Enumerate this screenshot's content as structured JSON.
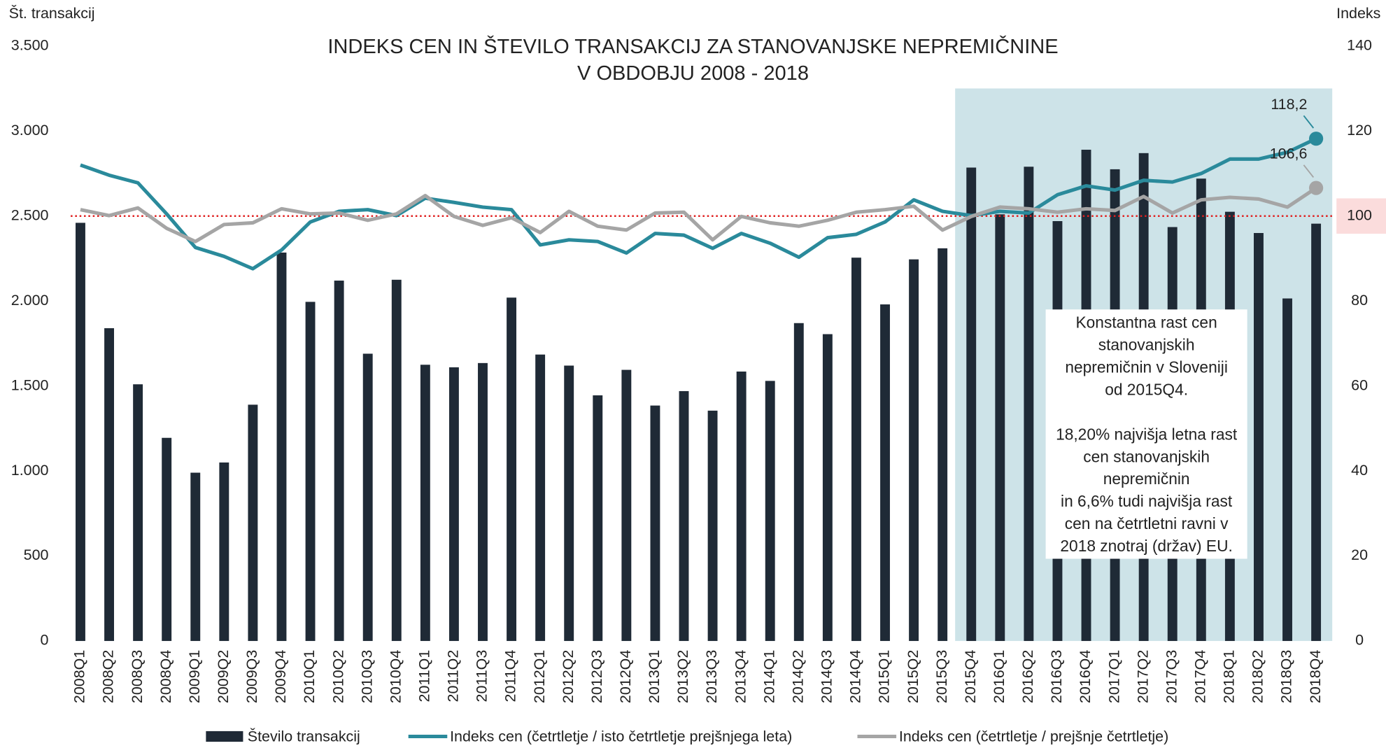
{
  "chart_data": {
    "type": "bar",
    "title": [
      "INDEKS CEN IN ŠTEVILO TRANSAKCIJ ZA STANOVANJSKE NEPREMIČNINE",
      "V OBDOBJU 2008 - 2018"
    ],
    "y_label": "Št. transakcij",
    "y2_label": "Indeks",
    "categories": [
      "2008Q1",
      "2008Q2",
      "2008Q3",
      "2008Q4",
      "2009Q1",
      "2009Q2",
      "2009Q3",
      "2009Q4",
      "2010Q1",
      "2010Q2",
      "2010Q3",
      "2010Q4",
      "2011Q1",
      "2011Q2",
      "2011Q3",
      "2011Q4",
      "2012Q1",
      "2012Q2",
      "2012Q3",
      "2012Q4",
      "2013Q1",
      "2013Q2",
      "2013Q3",
      "2013Q4",
      "2014Q1",
      "2014Q2",
      "2014Q3",
      "2014Q4",
      "2015Q1",
      "2015Q2",
      "2015Q3",
      "2015Q4",
      "2016Q1",
      "2016Q2",
      "2016Q3",
      "2016Q4",
      "2017Q1",
      "2017Q2",
      "2017Q3",
      "2017Q4",
      "2018Q1",
      "2018Q2",
      "2018Q3",
      "2018Q4"
    ],
    "series": [
      {
        "name": "Število transakcij",
        "type": "bar",
        "axis": "y",
        "color": "#1f2a36",
        "values": [
          2460,
          1840,
          1510,
          1195,
          990,
          1050,
          1390,
          2285,
          1995,
          2120,
          1690,
          2125,
          1625,
          1610,
          1635,
          2020,
          1685,
          1620,
          1445,
          1595,
          1385,
          1470,
          1355,
          1585,
          1530,
          1870,
          1805,
          2255,
          1980,
          2245,
          2310,
          2785,
          2510,
          2790,
          2470,
          2890,
          2775,
          2870,
          2435,
          2720,
          2525,
          2400,
          2015,
          2455
        ]
      },
      {
        "name": "Indeks cen (četrtletje / isto četrtletje prejšnjega leta)",
        "type": "line",
        "axis": "y2",
        "color": "#2a8a9b",
        "values": [
          112,
          109.6,
          107.8,
          100.5,
          92.6,
          90.5,
          87.6,
          92,
          98.6,
          101.1,
          101.5,
          100.1,
          104.2,
          103.2,
          102.1,
          101.5,
          93.2,
          94.4,
          94,
          91.3,
          95.9,
          95.5,
          92.4,
          95.9,
          93.6,
          90.3,
          94.9,
          95.7,
          98.6,
          103.8,
          101.1,
          100.1,
          101.1,
          100.7,
          105,
          107.1,
          106.1,
          108.4,
          108,
          110,
          113.4,
          113.4,
          115,
          118.2
        ],
        "value_labels": [
          null,
          null,
          null,
          null,
          null,
          null,
          null,
          null,
          null,
          null,
          null,
          null,
          null,
          null,
          null,
          null,
          null,
          null,
          null,
          null,
          null,
          null,
          null,
          null,
          null,
          null,
          null,
          null,
          null,
          null,
          null,
          null,
          null,
          null,
          null,
          null,
          null,
          null,
          null,
          null,
          null,
          null,
          null,
          "118,2"
        ]
      },
      {
        "name": "Indeks cen (četrtletje / prejšnje četrtletje)",
        "type": "line",
        "axis": "y2",
        "color": "#a5a5a5",
        "values": [
          101.5,
          100.1,
          101.9,
          97.1,
          94,
          98,
          98.4,
          101.7,
          100.5,
          100.7,
          99,
          100.5,
          104.8,
          99.9,
          97.8,
          99.6,
          96.1,
          101.1,
          97.6,
          96.7,
          100.7,
          100.9,
          94.4,
          99.9,
          98.4,
          97.6,
          99,
          100.9,
          101.5,
          102.3,
          96.7,
          99.9,
          102.1,
          101.7,
          100.9,
          101.7,
          101.3,
          104.6,
          100.7,
          103.8,
          104.4,
          104,
          102.1,
          106.6
        ],
        "value_labels": [
          null,
          null,
          null,
          null,
          null,
          null,
          null,
          null,
          null,
          null,
          null,
          null,
          null,
          null,
          null,
          null,
          null,
          null,
          null,
          null,
          null,
          null,
          null,
          null,
          null,
          null,
          null,
          null,
          null,
          null,
          null,
          null,
          null,
          null,
          null,
          null,
          null,
          null,
          null,
          null,
          null,
          null,
          null,
          "106,6"
        ]
      }
    ],
    "ylim": [
      0,
      3500
    ],
    "yticks": [
      0,
      500,
      {
        "value": 1000,
        "label": "1.000"
      },
      {
        "value": 1500,
        "label": "1.500"
      },
      {
        "value": 2000,
        "label": "2.000"
      },
      {
        "value": 2500,
        "label": "2.500"
      },
      {
        "value": 3000,
        "label": "3.000"
      },
      {
        "value": 3500,
        "label": "3.500"
      }
    ],
    "y2lim": [
      0,
      140
    ],
    "y2ticks": [
      0,
      20,
      40,
      60,
      80,
      100,
      120,
      140
    ],
    "reference_line": 100,
    "highlight_range": [
      "2015Q4",
      "2018Q4"
    ],
    "annotation": [
      [
        "Konstantna rast cen",
        "stanovanjskih",
        "nepremičnin v Sloveniji",
        "od 2015Q4."
      ],
      [
        "18,20% najvišja letna rast",
        "cen stanovanjskih",
        "nepremičnin",
        "in 6,6% tudi najvišja rast",
        "cen na četrtletni ravni v",
        "2018 znotraj (držav) EU."
      ]
    ],
    "legend": "bottom"
  }
}
